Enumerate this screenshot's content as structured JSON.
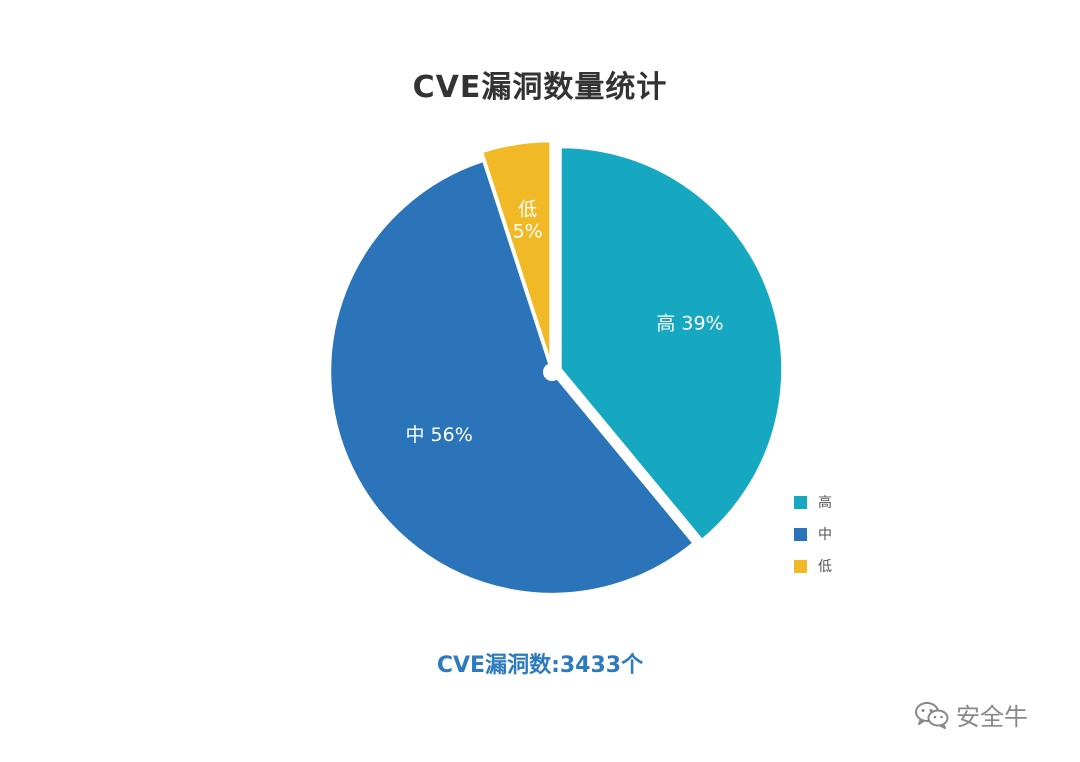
{
  "chart_data": {
    "type": "pie",
    "title": "CVE漏洞数量统计",
    "slices": [
      {
        "label": "高",
        "value": 39,
        "percent_label": "39%",
        "color": "#16a8c0",
        "exploded": true
      },
      {
        "label": "中",
        "value": 56,
        "percent_label": "56%",
        "color": "#2b74ba",
        "exploded": false
      },
      {
        "label": "低",
        "value": 5,
        "percent_label": "5%",
        "color": "#f0b925",
        "exploded": true
      }
    ],
    "legend": {
      "placement": "bottom-right",
      "entries": [
        "高",
        "中",
        "低"
      ]
    },
    "center_hole_color": "#ffffff"
  },
  "caption": "CVE漏洞数:3433个",
  "watermark": {
    "text": "安全牛",
    "icon": "wechat-icon"
  }
}
